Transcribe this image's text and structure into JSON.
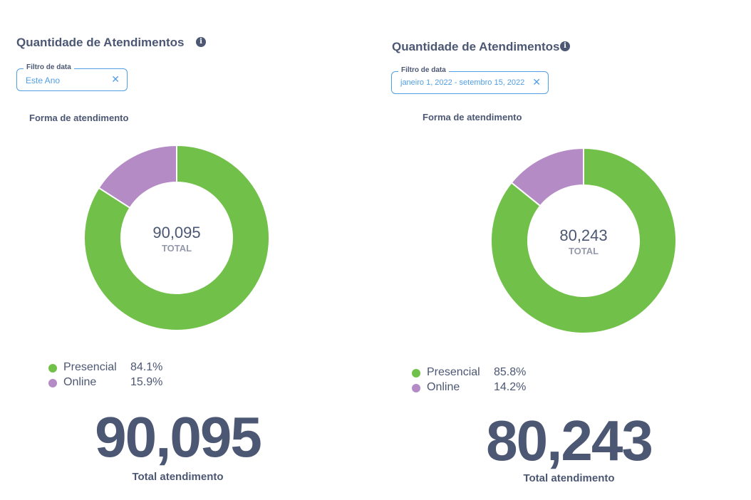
{
  "colors": {
    "presencial": "#71c049",
    "online": "#b58bc6",
    "accent": "#509ee3",
    "text": "#4c5773"
  },
  "panels": [
    {
      "title": "Quantidade de Atendimentos",
      "info_icon": "info-icon",
      "filter": {
        "label": "Filtro de data",
        "value": "Este Ano",
        "clear_icon": "✕"
      },
      "chart_title": "Forma de atendimento",
      "center": {
        "value": "90,095",
        "label": "TOTAL"
      },
      "legend": [
        {
          "name": "Presencial",
          "pct": "84.1%"
        },
        {
          "name": "Online",
          "pct": "15.9%"
        }
      ],
      "big_number": "90,095",
      "big_label": "Total atendimento"
    },
    {
      "title": "Quantidade de Atendimentos",
      "info_icon": "info-icon",
      "filter": {
        "label": "Filtro de data",
        "value": "janeiro 1, 2022 - setembro 15, 2022",
        "clear_icon": "✕"
      },
      "chart_title": "Forma de atendimento",
      "center": {
        "value": "80,243",
        "label": "TOTAL"
      },
      "legend": [
        {
          "name": "Presencial",
          "pct": "85.8%"
        },
        {
          "name": "Online",
          "pct": "14.2%"
        }
      ],
      "big_number": "80,243",
      "big_label": "Total atendimento"
    }
  ],
  "chart_data": [
    {
      "type": "pie",
      "title": "Forma de atendimento",
      "categories": [
        "Presencial",
        "Online"
      ],
      "values": [
        84.1,
        15.9
      ],
      "total": 90095
    },
    {
      "type": "pie",
      "title": "Forma de atendimento",
      "categories": [
        "Presencial",
        "Online"
      ],
      "values": [
        85.8,
        14.2
      ],
      "total": 80243
    }
  ]
}
